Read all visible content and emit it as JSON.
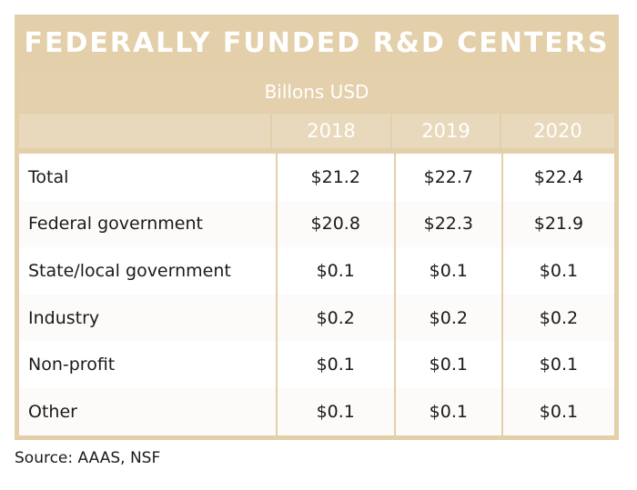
{
  "chart_data": {
    "type": "table",
    "title": "FEDERALLY FUNDED R&D CENTERS",
    "subtitle": "Billons USD",
    "columns": [
      "",
      "2018",
      "2019",
      "2020"
    ],
    "rows": [
      {
        "label": "Total",
        "values": [
          "$21.2",
          "$22.7",
          "$22.4"
        ]
      },
      {
        "label": "Federal government",
        "values": [
          "$20.8",
          "$22.3",
          "$21.9"
        ]
      },
      {
        "label": "State/local government",
        "values": [
          "$0.1",
          "$0.1",
          "$0.1"
        ]
      },
      {
        "label": "Industry",
        "values": [
          "$0.2",
          "$0.2",
          "$0.2"
        ]
      },
      {
        "label": "Non-profit",
        "values": [
          "$0.1",
          "$0.1",
          "$0.1"
        ]
      },
      {
        "label": "Other",
        "values": [
          "$0.1",
          "$0.1",
          "$0.1"
        ]
      }
    ],
    "source": "Source: AAAS, NSF"
  },
  "colors": {
    "frame": "#e3cfa9",
    "header_text": "#ffffff",
    "body_text": "#1a1a1a"
  }
}
